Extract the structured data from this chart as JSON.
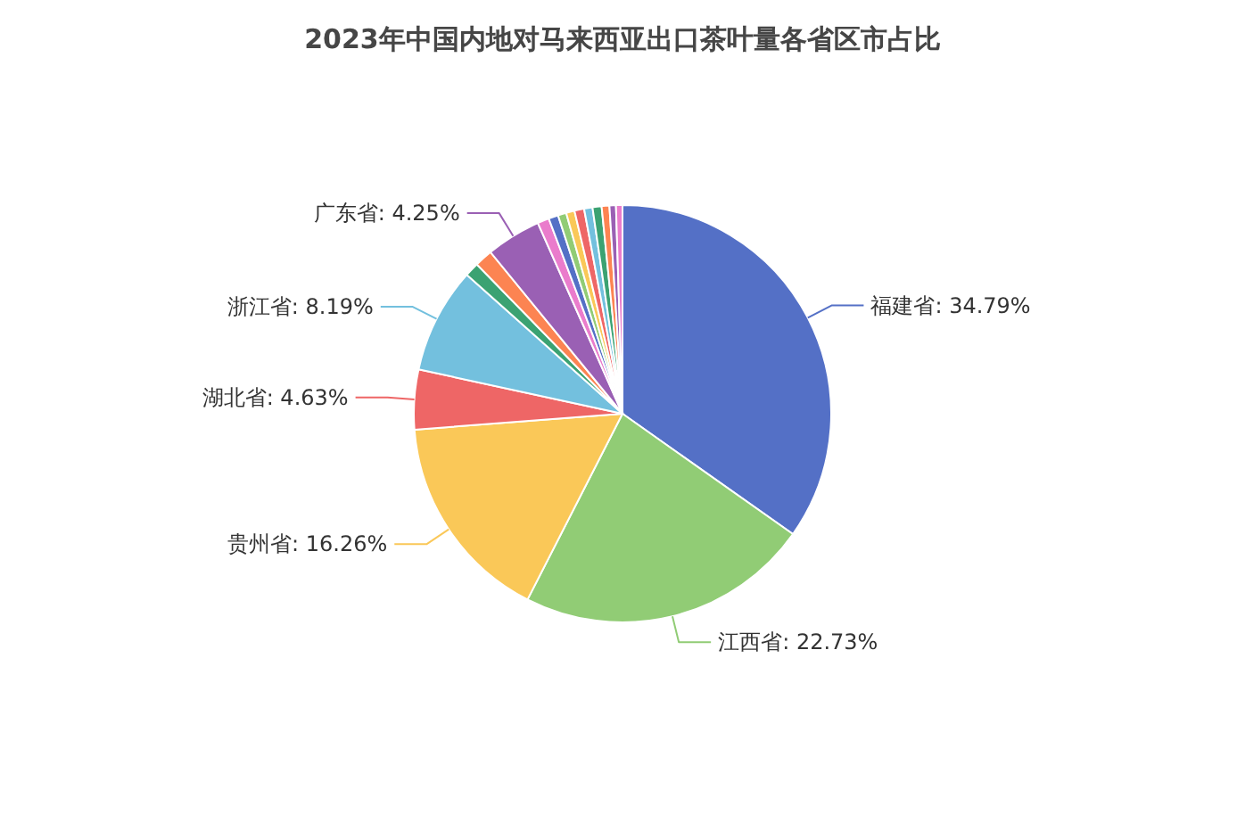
{
  "chart_data": {
    "type": "pie",
    "title": "2023年中国内地对马来西亚出口茶叶量各省区市占比",
    "categories": [
      "福建省",
      "江西省",
      "贵州省",
      "湖北省",
      "浙江省",
      null,
      null,
      "广东省",
      null,
      null,
      null,
      null,
      null,
      null,
      null,
      null,
      null,
      null
    ],
    "values": [
      34.79,
      22.73,
      16.26,
      4.63,
      8.19,
      1.1,
      1.4,
      4.25,
      0.9,
      0.75,
      0.65,
      0.65,
      0.75,
      0.65,
      0.7,
      0.6,
      0.5,
      0.5
    ],
    "colors": [
      "#5470c6",
      "#91cc75",
      "#fac858",
      "#ee6666",
      "#73c0de",
      "#3ba272",
      "#fc8452",
      "#9a60b4",
      "#ea7ccc",
      "#5470c6",
      "#91cc75",
      "#fac858",
      "#ee6666",
      "#73c0de",
      "#3ba272",
      "#fc8452",
      "#9a60b4",
      "#ea7ccc"
    ],
    "value_labels": [
      "34.79%",
      "22.73%",
      "16.26%",
      "4.63%",
      "8.19%",
      null,
      null,
      "4.25%",
      null,
      null,
      null,
      null,
      null,
      null,
      null,
      null,
      null,
      null
    ]
  }
}
